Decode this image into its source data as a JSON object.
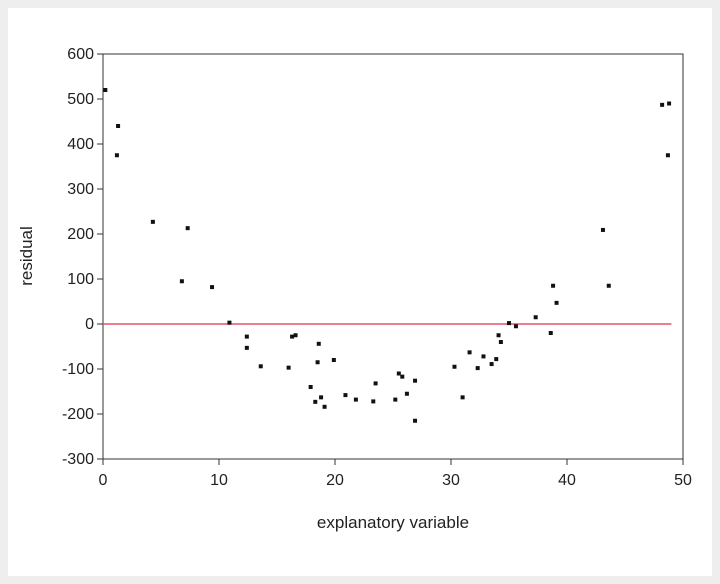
{
  "chart_data": {
    "type": "scatter",
    "title": "",
    "xlabel": "explanatory variable",
    "ylabel": "residual",
    "xlim": [
      0,
      50
    ],
    "ylim": [
      -300,
      600
    ],
    "xticks": [
      0,
      10,
      20,
      30,
      40,
      50
    ],
    "yticks": [
      600,
      500,
      400,
      300,
      200,
      100,
      0,
      -100,
      -200,
      -300
    ],
    "grid": false,
    "reference_line": {
      "y": 0,
      "x_range": [
        0,
        49
      ],
      "color": "#e8516b"
    },
    "colors": {
      "points": "#111111",
      "axis": "#333333",
      "background": "#ffffff"
    },
    "series": [
      {
        "points": [
          [
            0.2,
            520
          ],
          [
            1.3,
            440
          ],
          [
            1.2,
            375
          ],
          [
            4.3,
            227
          ],
          [
            7.3,
            213
          ],
          [
            6.8,
            95
          ],
          [
            9.4,
            82
          ],
          [
            10.9,
            3
          ],
          [
            12.4,
            -28
          ],
          [
            12.4,
            -53
          ],
          [
            13.6,
            -94
          ],
          [
            16,
            -97
          ],
          [
            16.3,
            -28
          ],
          [
            16.6,
            -25
          ],
          [
            17.9,
            -140
          ],
          [
            18.3,
            -173
          ],
          [
            18.5,
            -85
          ],
          [
            18.6,
            -44
          ],
          [
            18.8,
            -163
          ],
          [
            19.1,
            -184
          ],
          [
            19.9,
            -80
          ],
          [
            20.9,
            -158
          ],
          [
            21.8,
            -168
          ],
          [
            23.3,
            -172
          ],
          [
            23.5,
            -132
          ],
          [
            25.2,
            -168
          ],
          [
            25.5,
            -110
          ],
          [
            25.8,
            -117
          ],
          [
            26.2,
            -155
          ],
          [
            26.9,
            -126
          ],
          [
            26.9,
            -215
          ],
          [
            30.3,
            -95
          ],
          [
            31,
            -163
          ],
          [
            31.6,
            -63
          ],
          [
            32.3,
            -98
          ],
          [
            32.8,
            -72
          ],
          [
            33.5,
            -89
          ],
          [
            33.9,
            -78
          ],
          [
            34.1,
            -25
          ],
          [
            34.3,
            -40
          ],
          [
            35,
            2
          ],
          [
            35.6,
            -5
          ],
          [
            37.3,
            15
          ],
          [
            38.6,
            -20
          ],
          [
            38.8,
            85
          ],
          [
            39.1,
            47
          ],
          [
            43.1,
            209
          ],
          [
            43.6,
            85
          ],
          [
            48.2,
            487
          ],
          [
            48.8,
            490
          ],
          [
            48.7,
            375
          ]
        ]
      }
    ]
  }
}
